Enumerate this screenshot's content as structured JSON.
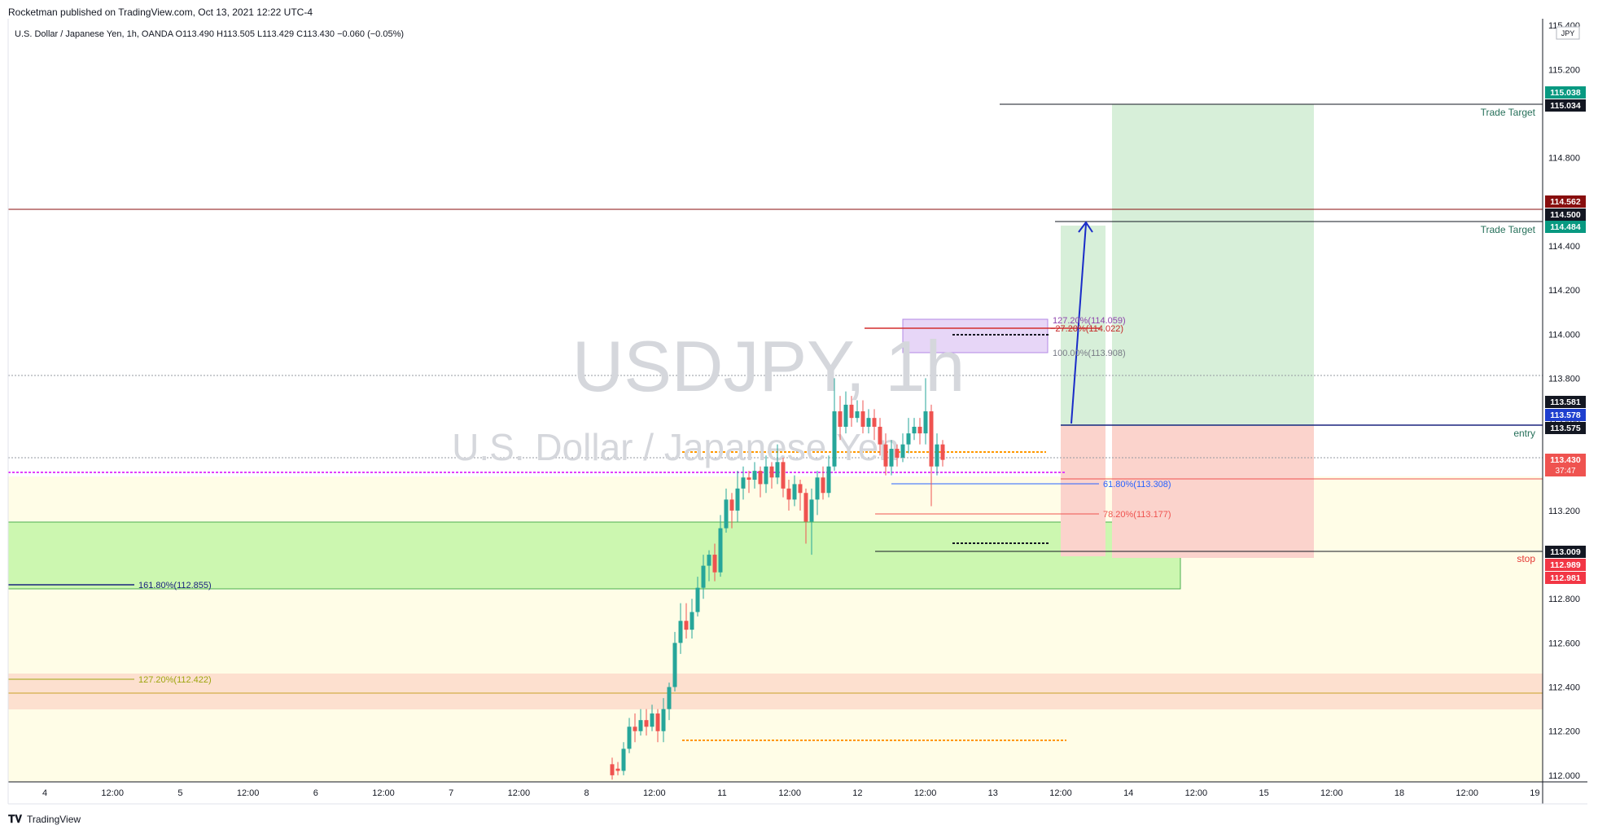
{
  "header": {
    "published": "Rocketman published on TradingView.com, Oct 13, 2021 12:22 UTC-4",
    "symbol_line": "U.S. Dollar / Japanese Yen, 1h, OANDA  O113.490  H113.505  L113.429  C113.430  −0.060 (−0.05%)"
  },
  "footer": {
    "brand": "TradingView",
    "logo": "tv-logo-icon"
  },
  "watermark": {
    "symbol": "USDJPY, 1h",
    "name": "U.S. Dollar / Japanese Yen"
  },
  "colors": {
    "up": "#26a69a",
    "down": "#ef5350",
    "profit_zone": "#c8e6c9",
    "loss_zone": "#f8c9c4",
    "fib_purple": "#9c27b0"
  },
  "chart_data": {
    "type": "candlestick",
    "timeframe": "1h",
    "currency": "JPY",
    "ylim": [
      111.97,
      115.43
    ],
    "y_ticks": [
      "115.400",
      "115.200",
      "114.800",
      "114.600",
      "114.400",
      "114.200",
      "114.000",
      "113.800",
      "113.600",
      "113.400",
      "113.200",
      "113.000",
      "112.800",
      "112.600",
      "112.400",
      "112.200",
      "112.000"
    ],
    "x_ticks": [
      "4",
      "12:00",
      "5",
      "12:00",
      "6",
      "12:00",
      "7",
      "12:00",
      "8",
      "12:00",
      "11",
      "12:00",
      "12",
      "12:00",
      "13",
      "12:00",
      "14",
      "12:00",
      "15",
      "12:00",
      "18",
      "12:00",
      "19"
    ],
    "price_labels": [
      {
        "text": "115.038",
        "bg": "#089981",
        "fg": "#ffffff"
      },
      {
        "text": "115.034",
        "bg": "#131722",
        "fg": "#ffffff"
      },
      {
        "text": "114.562",
        "bg": "#880e0e",
        "fg": "#ffffff"
      },
      {
        "text": "114.500",
        "bg": "#131722",
        "fg": "#ffffff"
      },
      {
        "text": "114.484",
        "bg": "#089981",
        "fg": "#ffffff"
      },
      {
        "text": "113.581",
        "bg": "#131722",
        "fg": "#ffffff"
      },
      {
        "text": "113.578",
        "bg": "#1e3fcf",
        "fg": "#ffffff"
      },
      {
        "text": "113.575",
        "bg": "#131722",
        "fg": "#ffffff"
      },
      {
        "text": "113.430",
        "bg": "#ef5350",
        "fg": "#ffffff",
        "sub": "37:47"
      },
      {
        "text": "113.009",
        "bg": "#131722",
        "fg": "#ffffff"
      },
      {
        "text": "112.989",
        "bg": "#f23645",
        "fg": "#ffffff"
      },
      {
        "text": "112.981",
        "bg": "#f23645",
        "fg": "#ffffff"
      }
    ],
    "annotations": {
      "trade_target": "Trade Target",
      "entry": "entry",
      "stop": "stop",
      "fib_127_top": "127.20%(114.059)",
      "fib_neg27": "−27.20%(114.022)",
      "fib_100": "100.00%(113.908)",
      "fib_618": "61.80%(113.308)",
      "fib_782": "78.20%(113.177)",
      "fib_1618": "161.80%(112.855)",
      "fib_1272": "127.20%(112.422)"
    },
    "candles": [
      [
        1,
        112.05,
        112.0,
        112.08,
        111.98
      ],
      [
        2,
        112.03,
        112.02,
        112.06,
        112.0
      ],
      [
        3,
        112.02,
        112.12,
        112.15,
        112.0
      ],
      [
        4,
        112.12,
        112.22,
        112.26,
        112.1
      ],
      [
        5,
        112.22,
        112.2,
        112.28,
        112.15
      ],
      [
        6,
        112.2,
        112.25,
        112.3,
        112.18
      ],
      [
        7,
        112.25,
        112.22,
        112.3,
        112.18
      ],
      [
        8,
        112.22,
        112.28,
        112.32,
        112.2
      ],
      [
        9,
        112.28,
        112.2,
        112.3,
        112.15
      ],
      [
        10,
        112.2,
        112.3,
        112.35,
        112.15
      ],
      [
        11,
        112.3,
        112.4,
        112.42,
        112.25
      ],
      [
        12,
        112.4,
        112.6,
        112.65,
        112.38
      ],
      [
        13,
        112.6,
        112.7,
        112.78,
        112.55
      ],
      [
        14,
        112.7,
        112.66,
        112.78,
        112.62
      ],
      [
        15,
        112.66,
        112.74,
        112.8,
        112.62
      ],
      [
        16,
        112.74,
        112.85,
        112.9,
        112.72
      ],
      [
        17,
        112.85,
        112.95,
        113.0,
        112.8
      ],
      [
        18,
        112.95,
        113.0,
        113.02,
        112.88
      ],
      [
        19,
        113.0,
        112.92,
        113.05,
        112.88
      ],
      [
        20,
        112.92,
        113.12,
        113.18,
        112.9
      ],
      [
        21,
        113.12,
        113.25,
        113.3,
        113.1
      ],
      [
        22,
        113.25,
        113.2,
        113.28,
        113.12
      ],
      [
        23,
        113.2,
        113.3,
        113.38,
        113.15
      ],
      [
        24,
        113.3,
        113.35,
        113.4,
        113.25
      ],
      [
        25,
        113.35,
        113.34,
        113.38,
        113.28
      ],
      [
        26,
        113.34,
        113.38,
        113.42,
        113.3
      ],
      [
        27,
        113.38,
        113.32,
        113.4,
        113.26
      ],
      [
        28,
        113.32,
        113.4,
        113.45,
        113.28
      ],
      [
        29,
        113.4,
        113.35,
        113.42,
        113.3
      ],
      [
        30,
        113.35,
        113.42,
        113.5,
        113.32
      ],
      [
        31,
        113.42,
        113.3,
        113.44,
        113.26
      ],
      [
        32,
        113.3,
        113.25,
        113.34,
        113.2
      ],
      [
        33,
        113.25,
        113.32,
        113.36,
        113.22
      ],
      [
        34,
        113.32,
        113.28,
        113.34,
        113.2
      ],
      [
        35,
        113.28,
        113.15,
        113.3,
        113.05
      ],
      [
        36,
        113.15,
        113.25,
        113.3,
        113.0
      ],
      [
        37,
        113.25,
        113.35,
        113.38,
        113.18
      ],
      [
        38,
        113.35,
        113.28,
        113.4,
        113.25
      ],
      [
        39,
        113.28,
        113.4,
        113.45,
        113.26
      ],
      [
        40,
        113.4,
        113.65,
        113.8,
        113.38
      ],
      [
        41,
        113.65,
        113.58,
        113.72,
        113.52
      ],
      [
        42,
        113.58,
        113.68,
        113.74,
        113.55
      ],
      [
        43,
        113.68,
        113.62,
        113.72,
        113.58
      ],
      [
        44,
        113.62,
        113.65,
        113.7,
        113.6
      ],
      [
        45,
        113.65,
        113.58,
        113.7,
        113.55
      ],
      [
        46,
        113.58,
        113.62,
        113.66,
        113.55
      ],
      [
        47,
        113.62,
        113.58,
        113.66,
        113.52
      ],
      [
        48,
        113.58,
        113.5,
        113.62,
        113.45
      ],
      [
        49,
        113.5,
        113.4,
        113.55,
        113.36
      ],
      [
        50,
        113.4,
        113.48,
        113.52,
        113.36
      ],
      [
        51,
        113.48,
        113.44,
        113.5,
        113.4
      ],
      [
        52,
        113.44,
        113.5,
        113.55,
        113.42
      ],
      [
        53,
        113.5,
        113.55,
        113.62,
        113.46
      ],
      [
        54,
        113.55,
        113.58,
        113.62,
        113.52
      ],
      [
        55,
        113.58,
        113.55,
        113.62,
        113.5
      ],
      [
        56,
        113.55,
        113.65,
        113.8,
        113.5
      ],
      [
        57,
        113.65,
        113.4,
        113.68,
        113.22
      ],
      [
        58,
        113.4,
        113.5,
        113.55,
        113.36
      ],
      [
        59,
        113.5,
        113.43,
        113.52,
        113.4
      ]
    ]
  }
}
